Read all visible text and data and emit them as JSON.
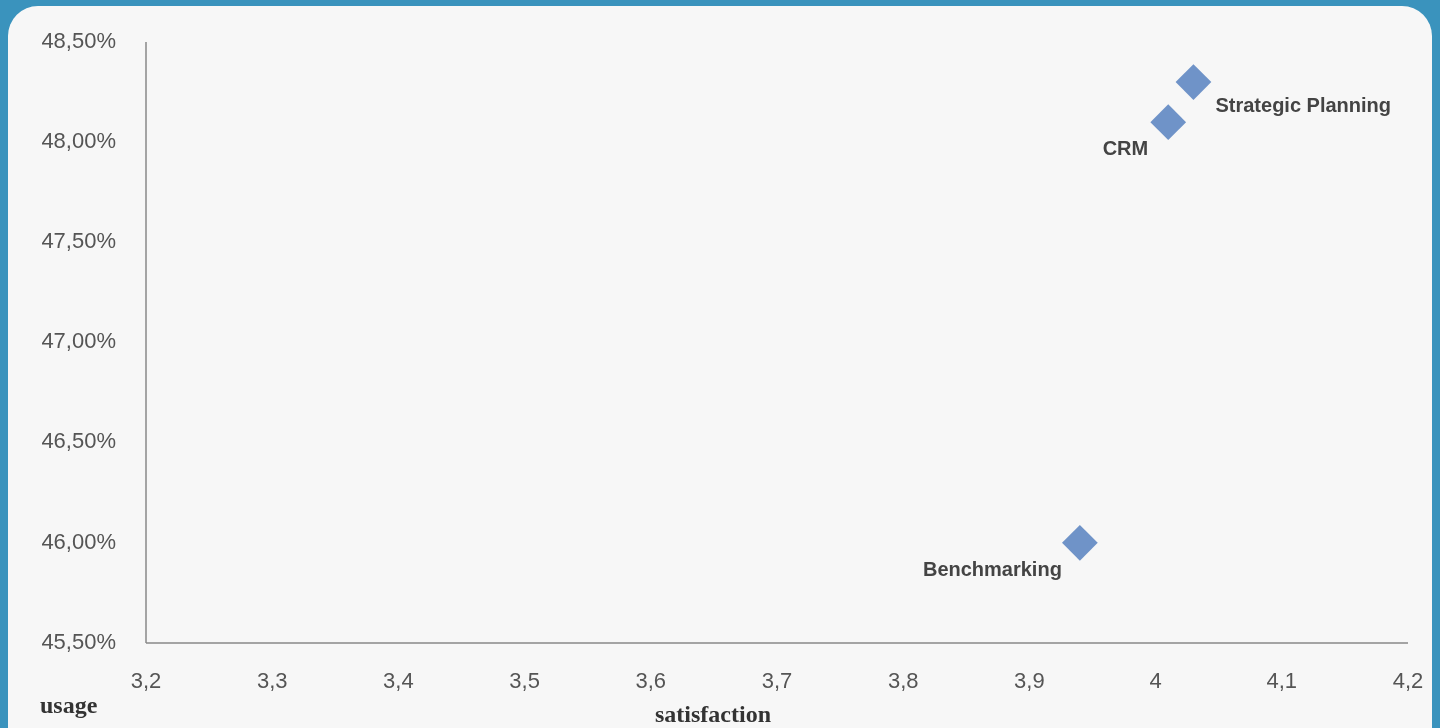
{
  "chart_data": {
    "type": "scatter",
    "xlabel": "satisfaction",
    "ylabel": "usage",
    "x": [
      4.03,
      4.01,
      3.94
    ],
    "series": [
      {
        "color": "#6f93c8",
        "values": [
          48.3,
          48.1,
          46.0
        ]
      }
    ],
    "marker": "diamond",
    "grid": false,
    "xlim": [
      3.2,
      4.2
    ],
    "xticks": [
      {
        "value": 3.2,
        "label": "3,2"
      },
      {
        "value": 3.3,
        "label": "3,3"
      },
      {
        "value": 3.4,
        "label": "3,4"
      },
      {
        "value": 3.5,
        "label": "3,5"
      },
      {
        "value": 3.6,
        "label": "3,6"
      },
      {
        "value": 3.7,
        "label": "3,7"
      },
      {
        "value": 3.8,
        "label": "3,8"
      },
      {
        "value": 3.9,
        "label": "3,9"
      },
      {
        "value": 4.0,
        "label": "4"
      },
      {
        "value": 4.1,
        "label": "4,1"
      },
      {
        "value": 4.2,
        "label": "4,2"
      }
    ],
    "ylim": [
      45.5,
      48.5
    ],
    "yticks": [
      {
        "value": 45.5,
        "label": "45,50%"
      },
      {
        "value": 46.0,
        "label": "46,00%"
      },
      {
        "value": 46.5,
        "label": "46,50%"
      },
      {
        "value": 47.0,
        "label": "47,00%"
      },
      {
        "value": 47.5,
        "label": "47,50%"
      },
      {
        "value": 48.0,
        "label": "48,00%"
      },
      {
        "value": 48.5,
        "label": "48,50%"
      }
    ],
    "annotations": [
      {
        "text": "Strategic Planning",
        "x": 4.03,
        "y": 48.3
      },
      {
        "text": "CRM",
        "x": 4.01,
        "y": 48.1
      },
      {
        "text": "Benchmarking",
        "x": 3.94,
        "y": 46.0
      }
    ]
  }
}
